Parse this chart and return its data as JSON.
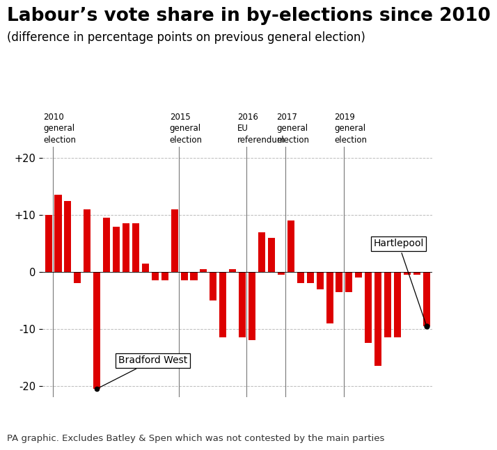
{
  "title": "Labour’s vote share in by-elections since 2010",
  "subtitle": "(difference in percentage points on previous general election)",
  "bar_color": "#dd0000",
  "background_color": "#ffffff",
  "ylim": [
    -22,
    22
  ],
  "yticks": [
    -20,
    -10,
    0,
    10,
    20
  ],
  "ytick_labels": [
    "-20",
    "-10",
    "0",
    "+10",
    "+20"
  ],
  "footer": "PA graphic. Excludes Batley & Spen which was not contested by the main parties",
  "values": [
    10.0,
    13.5,
    12.5,
    -2.0,
    11.0,
    -20.5,
    9.5,
    8.0,
    8.5,
    8.5,
    1.5,
    -1.5,
    -1.5,
    11.0,
    -1.5,
    -1.5,
    0.5,
    -5.0,
    -11.5,
    0.5,
    -11.5,
    -12.0,
    7.0,
    6.0,
    -0.5,
    9.0,
    -2.0,
    -2.0,
    -3.0,
    -9.0,
    -3.5,
    -3.5,
    -1.0,
    -12.5,
    -16.5,
    -11.5,
    -11.5,
    -0.5,
    -0.5,
    -9.5
  ],
  "vlines_x": [
    0.45,
    13.45,
    20.45,
    24.45,
    30.45
  ],
  "vline_label_info": [
    {
      "x": -0.5,
      "text": "2010\ngeneral\nelection",
      "ha": "left"
    },
    {
      "x": 12.5,
      "text": "2015\ngeneral\nelection",
      "ha": "left"
    },
    {
      "x": 19.5,
      "text": "2016\nEU\nreferendum",
      "ha": "left"
    },
    {
      "x": 23.5,
      "text": "2017\ngeneral\nelection",
      "ha": "left"
    },
    {
      "x": 29.5,
      "text": "2019\ngeneral\nelection",
      "ha": "left"
    }
  ],
  "bradford_west_idx": 5,
  "hartlepool_idx": 39,
  "grid_color": "#bbbbbb",
  "title_fontsize": 19,
  "subtitle_fontsize": 12,
  "footer_fontsize": 9.5,
  "annotation_fontsize": 10
}
